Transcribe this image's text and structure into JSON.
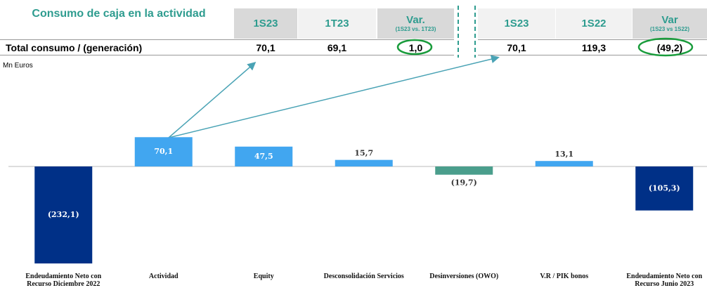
{
  "tables": [
    {
      "header": [
        "Consumo de caja en la actividad",
        "1S23",
        "1T23",
        "Var."
      ],
      "header_note": "(1S23 vs. 1T23)",
      "row": [
        "Total consumo / (generación)",
        "70,1",
        "69,1",
        "1,0"
      ]
    },
    {
      "header": [
        "1S23",
        "1S22",
        "Var"
      ],
      "header_note": "(1S23 vs 1S22)",
      "row": [
        "70,1",
        "119,3",
        "(49,2)"
      ]
    }
  ],
  "unit": "Mn Euros",
  "chart_data": {
    "type": "bar",
    "categories": [
      "Endeudamiento Neto con Recurso Diciembre 2022",
      "Actividad",
      "Equity",
      "Desconsolidación Servicios",
      "Desinversiones (OWO)",
      "V.R / PIK bonos",
      "Endeudamiento Neto con Recurso Junio 2023"
    ],
    "values": [
      -232.1,
      70.1,
      47.5,
      15.7,
      -19.7,
      13.1,
      -105.3
    ],
    "value_labels": [
      "(232,1)",
      "70,1",
      "47,5",
      "15,7",
      "(19,7)",
      "13,1",
      "(105,3)"
    ],
    "colors": [
      "#003087",
      "#41a6f0",
      "#41a6f0",
      "#41a6f0",
      "#4a9e8c",
      "#41a6f0",
      "#003087"
    ]
  }
}
